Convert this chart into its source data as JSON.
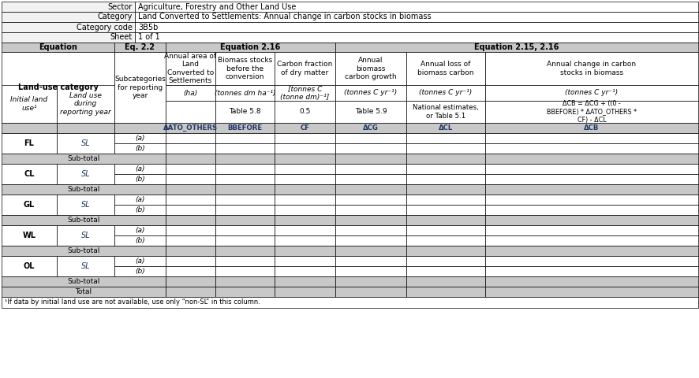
{
  "sector_label": "Sector",
  "sector_value": "Agriculture, Forestry and Other Land Use",
  "category_label": "Category",
  "category_value": "Land Converted to Settlements: Annual change in carbon stocks in biomass",
  "code_label": "Category code",
  "code_value": "3B5b",
  "sheet_label": "Sheet",
  "sheet_value": "1 of 1",
  "eq_header": "Equation",
  "eq_22": "Eq. 2.2",
  "eq_216": "Equation 2.16",
  "eq_2152_16": "Equation 2.15, 2.16",
  "col1_h1": "Land-use category",
  "col3_h": "Subcategories\nfor reporting\nyear",
  "col4_h": "Annual area of\nLand\nConverted to\nSettlements",
  "col5_h": "Biomass stocks\nbefore the\nconversion",
  "col6_h": "Carbon fraction\nof dry matter",
  "col7_h": "Annual\nbiomass\ncarbon growth",
  "col8_h": "Annual loss of\nbiomass carbon",
  "col9_h": "Annual change in carbon\nstocks in biomass",
  "col1_sub": "Initial land\nuse¹",
  "col2_sub": "Land use\nduring\nreporting year",
  "col4_unit": "(ha)",
  "col5_unit": "(tonnes dm ha⁻¹)",
  "col6_unit": "[tonnes C\n(tonne dm)⁻¹]",
  "col7_unit": "(tonnes C yr⁻¹)",
  "col8_unit": "(tonnes C yr⁻¹)",
  "col9_unit": "(tonnes C yr⁻¹)",
  "col5_default": "Table 5.8",
  "col6_default": "0.5",
  "col7_default": "Table 5.9",
  "col8_default": "National estimates,\nor Table 5.1",
  "col9_default": "ΔCB = ΔCG + ((0 -\nBBEFORE) * ΔATO_OTHERS *\nCF) - ΔCL",
  "col4_sym": "ΔATO_OTHERS",
  "col5_sym": "BBEFORE",
  "col6_sym": "CF",
  "col7_sym": "ΔCG",
  "col8_sym": "ΔCL",
  "col9_sym": "ΔCB",
  "land_uses": [
    "FL",
    "CL",
    "GL",
    "WL",
    "OL"
  ],
  "bg_gray": "#c8c8c8",
  "bg_light": "#f2f2f2",
  "bg_white": "#ffffff",
  "text_blue": "#1F3864",
  "text_black": "#000000",
  "footnote": "¹If data by initial land use are not available, use only “non-SL” in this column."
}
